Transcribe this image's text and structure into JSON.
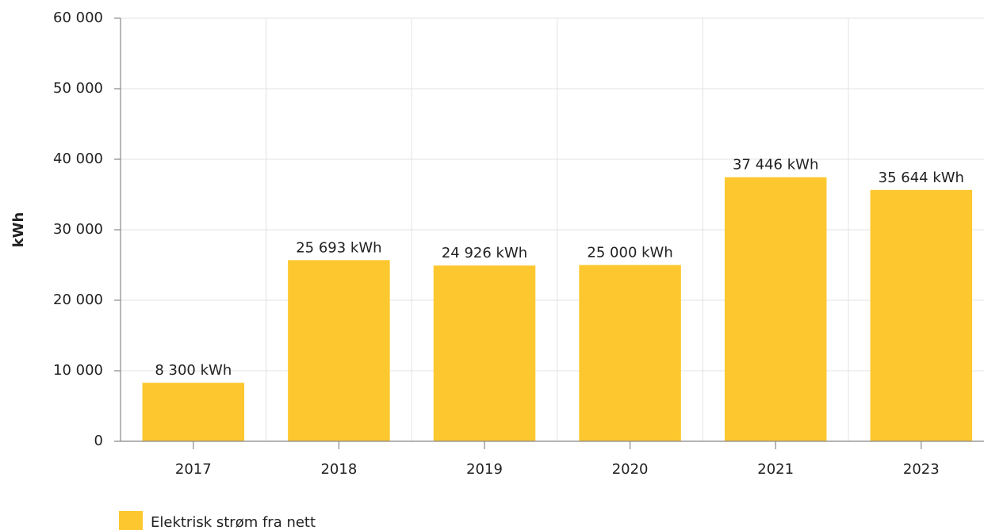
{
  "chart_data": {
    "type": "bar",
    "y_label": "kWh",
    "categories": [
      "2017",
      "2018",
      "2019",
      "2020",
      "2021",
      "2023"
    ],
    "series": [
      {
        "name": "Elektrisk strøm fra nett",
        "color": "#fdc82f",
        "values": [
          8300,
          25693,
          24926,
          25000,
          37446,
          35644
        ],
        "value_labels": [
          "8 300 kWh",
          "25 693 kWh",
          "24 926 kWh",
          "25 000 kWh",
          "37 446 kWh",
          "35 644 kWh"
        ]
      }
    ],
    "ylim": [
      0,
      60000
    ],
    "yticks": [
      0,
      {
        "value": 10000,
        "label": "10 000"
      },
      {
        "value": 20000,
        "label": "20 000"
      },
      {
        "value": 30000,
        "label": "30 000"
      },
      {
        "value": 40000,
        "label": "40 000"
      },
      {
        "value": 50000,
        "label": "50 000"
      },
      {
        "value": 60000,
        "label": "60 000"
      }
    ],
    "grid": true
  }
}
